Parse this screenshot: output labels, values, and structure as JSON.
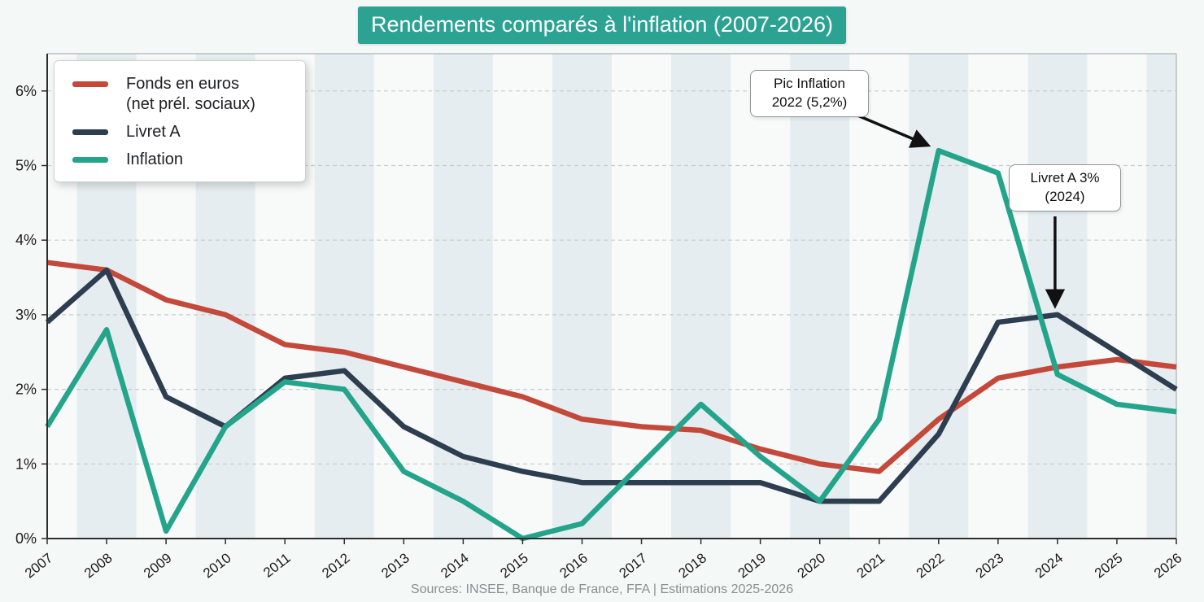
{
  "title": {
    "text": "Rendements comparés à l'inflation (2007-2026)"
  },
  "source": {
    "text": "Sources: INSEE, Banque de France, FFA | Estimations 2025-2026"
  },
  "legend": {
    "items": [
      {
        "label": "Fonds en euros\n(net prél. sociaux)",
        "color": "#c4493a"
      },
      {
        "label": "Livret A",
        "color": "#2d3e50"
      },
      {
        "label": "Inflation",
        "color": "#24a48b"
      }
    ]
  },
  "annotations": [
    {
      "id": "pic-inflation",
      "text": "Pic Inflation\n2022 (5,2%)",
      "arrow_to": {
        "year": 2022,
        "series": "Inflation"
      }
    },
    {
      "id": "livret-a-3pc",
      "text": "Livret A 3%\n(2024)",
      "arrow_to": {
        "year": 2024,
        "series": "Livret A"
      }
    }
  ],
  "axis": {
    "y_ticks": [
      "0%",
      "1%",
      "2%",
      "3%",
      "4%",
      "5%",
      "6%"
    ]
  },
  "colors": {
    "title_bg": "#2ca292",
    "page_bg": "#f4f8f7",
    "plot_bg": "#f8fafa",
    "stripe": "#e6edf0",
    "gridline": "#c6cbcb",
    "axis": "#2e2e2e",
    "frame": "#aab4b6",
    "annotation_arrow": "#111111",
    "source_text": "#8a8f8f"
  },
  "chart_data": {
    "type": "line",
    "title": "Rendements comparés à l'inflation (2007-2026)",
    "categories": [
      2007,
      2008,
      2009,
      2010,
      2011,
      2012,
      2013,
      2014,
      2015,
      2016,
      2017,
      2018,
      2019,
      2020,
      2021,
      2022,
      2023,
      2024,
      2025,
      2026
    ],
    "series": [
      {
        "name": "Fonds en euros (net prél. sociaux)",
        "color": "#c4493a",
        "values": [
          3.7,
          3.6,
          3.2,
          3.0,
          2.6,
          2.5,
          2.3,
          2.1,
          1.9,
          1.6,
          1.5,
          1.45,
          1.2,
          1.0,
          0.9,
          1.6,
          2.15,
          2.3,
          2.4,
          2.3
        ]
      },
      {
        "name": "Livret A",
        "color": "#2d3e50",
        "values": [
          2.9,
          3.6,
          1.9,
          1.5,
          2.15,
          2.25,
          1.5,
          1.1,
          0.9,
          0.75,
          0.75,
          0.75,
          0.75,
          0.5,
          0.5,
          1.4,
          2.9,
          3.0,
          2.5,
          2.0
        ]
      },
      {
        "name": "Inflation",
        "color": "#24a48b",
        "values": [
          1.5,
          2.8,
          0.1,
          1.5,
          2.1,
          2.0,
          0.9,
          0.5,
          0.0,
          0.2,
          1.0,
          1.8,
          1.1,
          0.5,
          1.6,
          5.2,
          4.9,
          2.2,
          1.8,
          1.7
        ]
      }
    ],
    "ylabel": "",
    "xlabel": "",
    "ylim": [
      0,
      6.5
    ],
    "grid": "horizontal dashed at each 1%",
    "legend_position": "top-left",
    "background_stripes": "even years shaded light blue-gray"
  }
}
